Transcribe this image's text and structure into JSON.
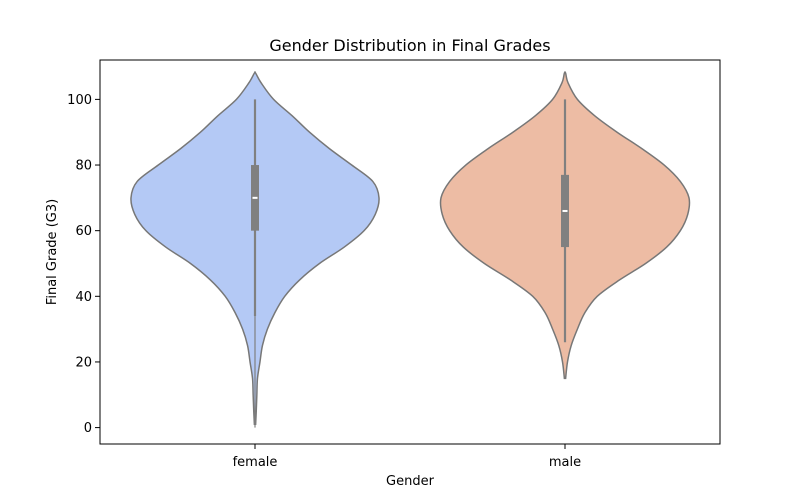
{
  "chart_data": {
    "type": "violin",
    "title": "Gender Distribution in Final Grades",
    "xlabel": "Gender",
    "ylabel": "Final Grade (G3)",
    "categories": [
      "female",
      "male"
    ],
    "ylim": [
      -5,
      112
    ],
    "yticks": [
      0,
      20,
      40,
      60,
      80,
      100
    ],
    "grid": false,
    "legend": "none",
    "colors": [
      "#b4c9f5",
      "#edbca4"
    ],
    "violins": [
      {
        "category": "female",
        "min": 0,
        "q1": 60,
        "median": 70,
        "q3": 80,
        "max": 100,
        "whisker_low": 34,
        "whisker_high": 100,
        "kde_min": 1,
        "kde_max": 108,
        "density": [
          [
            1,
            0.005
          ],
          [
            5,
            0.01
          ],
          [
            10,
            0.015
          ],
          [
            15,
            0.02
          ],
          [
            20,
            0.04
          ],
          [
            25,
            0.06
          ],
          [
            30,
            0.1
          ],
          [
            35,
            0.16
          ],
          [
            40,
            0.24
          ],
          [
            45,
            0.36
          ],
          [
            50,
            0.52
          ],
          [
            55,
            0.72
          ],
          [
            60,
            0.88
          ],
          [
            65,
            0.97
          ],
          [
            70,
            1.0
          ],
          [
            75,
            0.95
          ],
          [
            80,
            0.78
          ],
          [
            85,
            0.6
          ],
          [
            90,
            0.44
          ],
          [
            95,
            0.3
          ],
          [
            100,
            0.15
          ],
          [
            105,
            0.05
          ],
          [
            108,
            0.005
          ]
        ]
      },
      {
        "category": "male",
        "min": 26,
        "q1": 55,
        "median": 66,
        "q3": 77,
        "max": 100,
        "whisker_low": 26,
        "whisker_high": 100,
        "kde_min": 15,
        "kde_max": 108,
        "density": [
          [
            15,
            0.005
          ],
          [
            20,
            0.02
          ],
          [
            25,
            0.05
          ],
          [
            30,
            0.1
          ],
          [
            35,
            0.16
          ],
          [
            40,
            0.26
          ],
          [
            45,
            0.44
          ],
          [
            50,
            0.65
          ],
          [
            55,
            0.82
          ],
          [
            60,
            0.93
          ],
          [
            65,
            0.99
          ],
          [
            70,
            1.0
          ],
          [
            75,
            0.93
          ],
          [
            80,
            0.8
          ],
          [
            85,
            0.62
          ],
          [
            90,
            0.42
          ],
          [
            95,
            0.24
          ],
          [
            100,
            0.1
          ],
          [
            105,
            0.025
          ],
          [
            108,
            0.005
          ]
        ]
      }
    ]
  }
}
